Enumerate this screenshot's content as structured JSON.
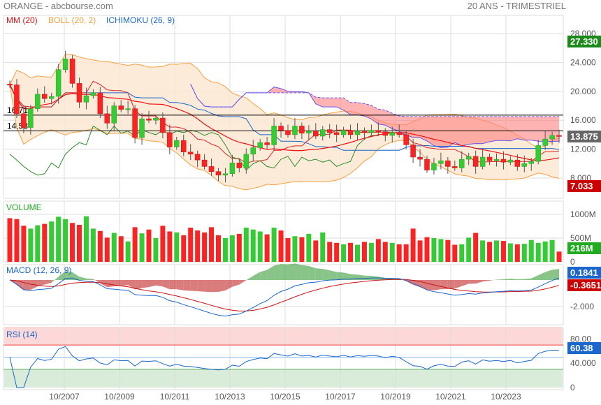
{
  "header": {
    "title": "ORANGE - abcbourse.com",
    "period": "20 ANS - TRIMESTRIEL"
  },
  "legend": {
    "mm": "MM (20)",
    "boll": "BOLL (20, 2)",
    "ichimoku": "ICHIMOKU (26, 9)"
  },
  "colors": {
    "up": "#33cc33",
    "down": "#ff2222",
    "mm": "#ee1111",
    "boll": "#f5a040",
    "bollFill": "#fde8d2",
    "ichi": "#1a66cc",
    "cloud": "#ff8080",
    "chikou": "#2a8a2a",
    "macd": "#1a66cc",
    "signal": "#cc1111",
    "rsi": "#1a66cc"
  },
  "chart_data": [
    {
      "type": "candlestick",
      "title": "ORANGE",
      "ylim": [
        5,
        30
      ],
      "yticks": [
        "28.000",
        "24.000",
        "20.000",
        "16.000",
        "12.000",
        "8.000"
      ],
      "ytick_values": [
        28,
        24,
        20,
        16,
        12,
        8
      ],
      "xticks": [
        "10/2007",
        "10/2009",
        "10/2011",
        "10/2013",
        "10/2015",
        "10/2017",
        "10/2019",
        "10/2021",
        "10/2023"
      ],
      "hlines": [
        {
          "label": "16.71",
          "value": 16.71
        },
        {
          "label": "14.53",
          "value": 14.53
        }
      ],
      "badges": {
        "high": "27.330",
        "last": "13.875",
        "low": "7.033"
      },
      "closes": [
        20.9,
        16.9,
        15.0,
        17.6,
        19.6,
        19.0,
        19.3,
        23.0,
        24.5,
        21.1,
        18.5,
        19.4,
        19.8,
        16.9,
        15.6,
        18.0,
        17.5,
        17.6,
        13.6,
        16.2,
        16.0,
        16.3,
        14.3,
        12.3,
        13.2,
        11.6,
        11.3,
        10.5,
        9.6,
        8.9,
        8.4,
        8.6,
        10.1,
        9.4,
        11.3,
        12.2,
        12.9,
        12.6,
        15.2,
        14.6,
        14.0,
        15.2,
        14.2,
        14.5,
        13.8,
        14.7,
        14.3,
        14.0,
        14.6,
        14.0,
        14.5,
        14.3,
        14.6,
        14.4,
        13.9,
        14.3,
        14.0,
        12.6,
        10.9,
        10.6,
        9.1,
        10.0,
        10.4,
        9.6,
        9.4,
        10.6,
        11.0,
        9.6,
        10.9,
        10.4,
        10.6,
        10.2,
        10.5,
        9.6,
        10.0,
        10.3,
        12.5,
        13.4,
        13.9,
        13.875
      ],
      "first_open": 21.0
    },
    {
      "type": "bar",
      "title": "VOLUME",
      "unit": "M",
      "ylim": [
        0,
        1150
      ],
      "yticks": [
        "1000M",
        "500M",
        "0"
      ],
      "ytick_values": [
        1000,
        500,
        0
      ],
      "badge": "216M",
      "values": [
        920,
        900,
        760,
        700,
        770,
        800,
        850,
        950,
        900,
        820,
        780,
        960,
        700,
        650,
        510,
        610,
        540,
        430,
        730,
        600,
        680,
        500,
        760,
        640,
        620,
        560,
        720,
        660,
        620,
        730,
        560,
        500,
        560,
        590,
        720,
        680,
        640,
        580,
        720,
        660,
        500,
        540,
        520,
        590,
        450,
        620,
        420,
        400,
        370,
        400,
        360,
        420,
        400,
        480,
        420,
        400,
        370,
        370,
        700,
        450,
        520,
        500,
        480,
        460,
        360,
        370,
        510,
        610,
        450,
        420,
        450,
        440,
        390,
        370,
        380,
        460,
        400,
        430,
        460,
        216
      ]
    },
    {
      "type": "line",
      "title": "MACD (12, 26, 9)",
      "yticks": [
        "-2.000"
      ],
      "ytick_values": [
        -2
      ],
      "badges": {
        "macd": "0.1841",
        "signal": "-0.3651"
      }
    },
    {
      "type": "line",
      "title": "RSI (14)",
      "ylim": [
        0,
        100
      ],
      "yticks": [
        "80.00",
        "40.000",
        "0"
      ],
      "ytick_values": [
        80,
        40,
        0
      ],
      "levels": [
        70,
        50,
        30
      ],
      "badge": "60.38"
    }
  ]
}
